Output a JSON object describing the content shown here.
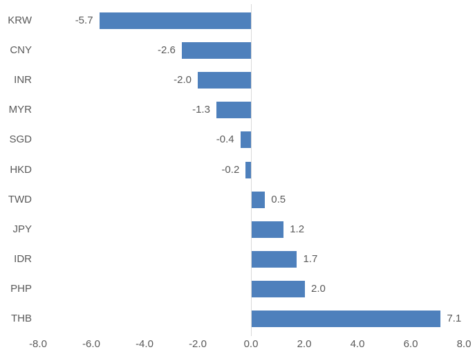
{
  "chart_data": {
    "type": "bar",
    "orientation": "horizontal",
    "title": "",
    "xlabel": "",
    "ylabel": "",
    "categories": [
      "KRW",
      "CNY",
      "INR",
      "MYR",
      "SGD",
      "HKD",
      "TWD",
      "JPY",
      "IDR",
      "PHP",
      "THB"
    ],
    "values": [
      -5.7,
      -2.6,
      -2.0,
      -1.3,
      -0.4,
      -0.2,
      0.5,
      1.2,
      1.7,
      2.0,
      7.1
    ],
    "value_labels": [
      "-5.7",
      "-2.6",
      "-2.0",
      "-1.3",
      "-0.4",
      "-0.2",
      "0.5",
      "1.2",
      "1.7",
      "2.0",
      "7.1"
    ],
    "xlim": [
      -8.0,
      8.0
    ],
    "xticks": [
      -8,
      -6,
      -4,
      -2,
      0,
      2,
      4,
      6,
      8
    ],
    "xtick_labels": [
      "-8.0",
      "-6.0",
      "-4.0",
      "-2.0",
      "0.0",
      "2.0",
      "4.0",
      "6.0",
      "8.0"
    ],
    "grid": false,
    "legend": false,
    "data_labels_position": "outside-end"
  },
  "colors": {
    "bar_fill": "#4E80BC",
    "axis_line": "#D9D9D9",
    "text": "#595959",
    "background": "#FFFFFF"
  }
}
